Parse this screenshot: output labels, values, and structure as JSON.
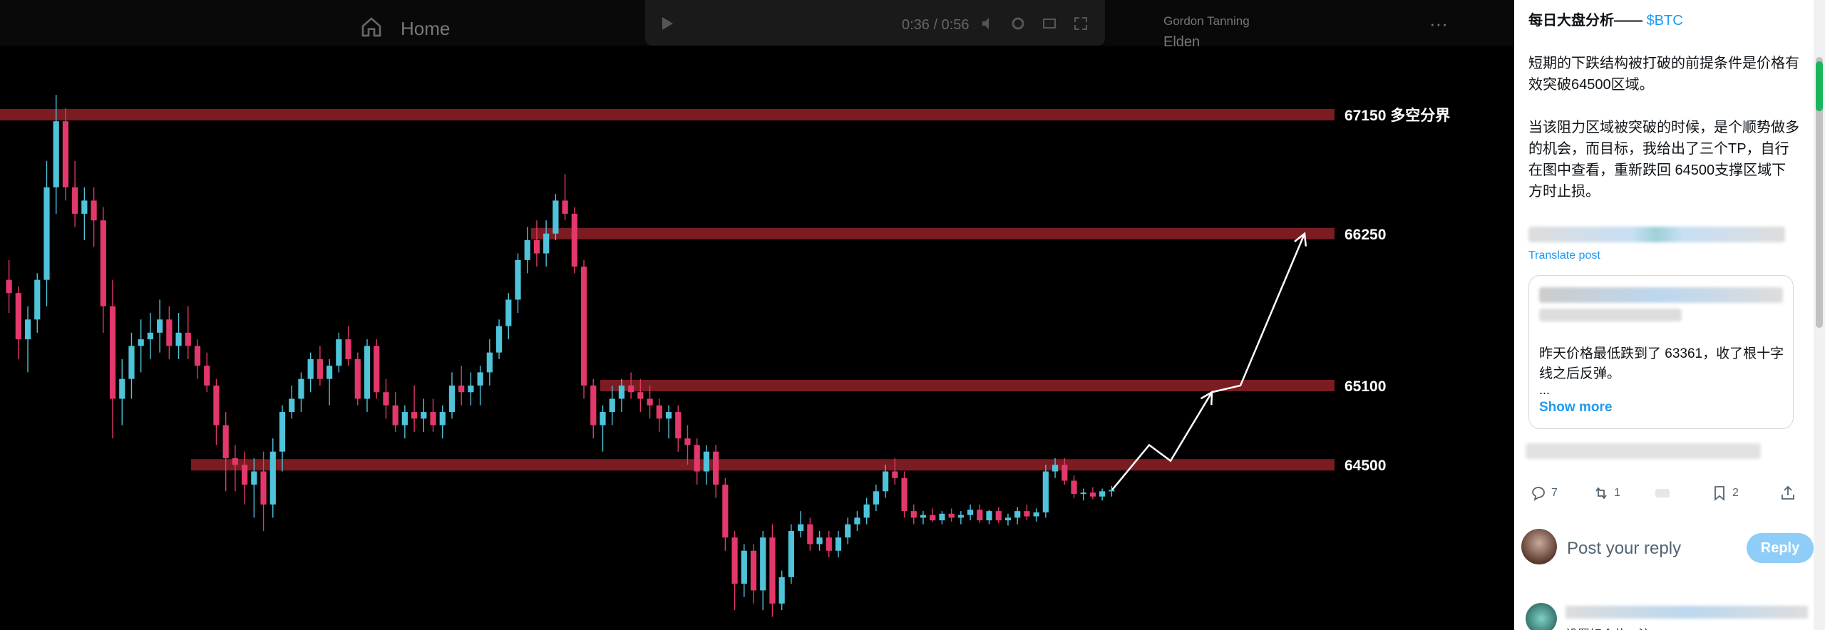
{
  "viewer": {
    "home_label": "Home",
    "video_time": "0:36 / 0:56",
    "author_name": "Gordon Tanning",
    "author_handle": "Elden",
    "more_label": "···"
  },
  "chart_data": {
    "type": "candlestick",
    "title": "",
    "levels": [
      {
        "price": 67150,
        "label": "67150 多空分界"
      },
      {
        "price": 66250,
        "label": "66250"
      },
      {
        "price": 65100,
        "label": "65100"
      },
      {
        "price": 64500,
        "label": "64500"
      }
    ],
    "ylim": [
      63250,
      67500
    ],
    "colors": {
      "up": "#4fc3d9",
      "down": "#e3386b",
      "level_band": "#7a1c22",
      "arrow": "#ffffff"
    },
    "candles": [
      [
        65900,
        66050,
        65650,
        65800
      ],
      [
        65800,
        65850,
        65300,
        65450
      ],
      [
        65450,
        65700,
        65200,
        65600
      ],
      [
        65600,
        65950,
        65500,
        65900
      ],
      [
        65900,
        66800,
        65700,
        66600
      ],
      [
        66600,
        67300,
        66400,
        67100
      ],
      [
        67100,
        67200,
        66500,
        66600
      ],
      [
        66600,
        66800,
        66300,
        66400
      ],
      [
        66400,
        66600,
        66200,
        66500
      ],
      [
        66500,
        66600,
        66150,
        66350
      ],
      [
        66350,
        66450,
        65500,
        65700
      ],
      [
        65700,
        65900,
        64700,
        65000
      ],
      [
        65000,
        65300,
        64800,
        65150
      ],
      [
        65150,
        65500,
        65000,
        65400
      ],
      [
        65400,
        65600,
        65200,
        65450
      ],
      [
        65450,
        65650,
        65300,
        65500
      ],
      [
        65500,
        65750,
        65350,
        65600
      ],
      [
        65600,
        65700,
        65300,
        65400
      ],
      [
        65400,
        65650,
        65300,
        65500
      ],
      [
        65500,
        65700,
        65300,
        65400
      ],
      [
        65400,
        65450,
        65150,
        65250
      ],
      [
        65250,
        65350,
        65050,
        65100
      ],
      [
        65100,
        65150,
        64650,
        64800
      ],
      [
        64800,
        64900,
        64300,
        64550
      ],
      [
        64550,
        64650,
        64300,
        64500
      ],
      [
        64500,
        64600,
        64200,
        64350
      ],
      [
        64350,
        64550,
        64100,
        64450
      ],
      [
        64450,
        64600,
        64000,
        64200
      ],
      [
        64200,
        64700,
        64100,
        64600
      ],
      [
        64600,
        64950,
        64450,
        64900
      ],
      [
        64900,
        65100,
        64850,
        65000
      ],
      [
        65000,
        65200,
        64900,
        65150
      ],
      [
        65150,
        65350,
        65050,
        65300
      ],
      [
        65300,
        65400,
        65100,
        65150
      ],
      [
        65150,
        65300,
        64950,
        65250
      ],
      [
        65250,
        65500,
        65200,
        65450
      ],
      [
        65450,
        65550,
        65250,
        65300
      ],
      [
        65300,
        65350,
        64950,
        65000
      ],
      [
        65000,
        65450,
        64900,
        65400
      ],
      [
        65400,
        65450,
        65000,
        65050
      ],
      [
        65050,
        65150,
        64850,
        64950
      ],
      [
        64950,
        65050,
        64750,
        64800
      ],
      [
        64800,
        64950,
        64700,
        64900
      ],
      [
        64900,
        65100,
        64750,
        64850
      ],
      [
        64850,
        65000,
        64750,
        64900
      ],
      [
        64900,
        65000,
        64750,
        64800
      ],
      [
        64800,
        64950,
        64700,
        64900
      ],
      [
        64900,
        65200,
        64850,
        65100
      ],
      [
        65100,
        65250,
        64950,
        65050
      ],
      [
        65050,
        65200,
        64950,
        65100
      ],
      [
        65100,
        65250,
        64950,
        65200
      ],
      [
        65200,
        65450,
        65100,
        65350
      ],
      [
        65350,
        65600,
        65300,
        65550
      ],
      [
        65550,
        65800,
        65450,
        65750
      ],
      [
        65750,
        66100,
        65650,
        66050
      ],
      [
        66050,
        66300,
        65950,
        66200
      ],
      [
        66200,
        66350,
        66000,
        66100
      ],
      [
        66100,
        66350,
        66000,
        66250
      ],
      [
        66250,
        66550,
        66200,
        66500
      ],
      [
        66500,
        66700,
        66350,
        66400
      ],
      [
        66400,
        66450,
        65950,
        66000
      ],
      [
        66000,
        66050,
        65000,
        65100
      ],
      [
        65100,
        65150,
        64700,
        64800
      ],
      [
        64800,
        64950,
        64600,
        64900
      ],
      [
        64900,
        65100,
        64800,
        65000
      ],
      [
        65000,
        65150,
        64900,
        65100
      ],
      [
        65100,
        65200,
        65000,
        65050
      ],
      [
        65050,
        65150,
        64900,
        65000
      ],
      [
        65000,
        65100,
        64850,
        64950
      ],
      [
        64950,
        65000,
        64750,
        64850
      ],
      [
        64850,
        64950,
        64700,
        64900
      ],
      [
        64900,
        64950,
        64600,
        64700
      ],
      [
        64700,
        64800,
        64500,
        64650
      ],
      [
        64650,
        64700,
        64350,
        64450
      ],
      [
        64450,
        64650,
        64350,
        64600
      ],
      [
        64600,
        64650,
        64250,
        64350
      ],
      [
        64350,
        64400,
        63850,
        63950
      ],
      [
        63950,
        64000,
        63400,
        63600
      ],
      [
        63600,
        63900,
        63500,
        63850
      ],
      [
        63850,
        63900,
        63450,
        63550
      ],
      [
        63550,
        64000,
        63400,
        63950
      ],
      [
        63950,
        64050,
        63350,
        63450
      ],
      [
        63450,
        63700,
        63400,
        63650
      ],
      [
        63650,
        64050,
        63600,
        64000
      ],
      [
        64000,
        64150,
        63950,
        64050
      ],
      [
        64050,
        64100,
        63850,
        63900
      ],
      [
        63900,
        64000,
        63850,
        63950
      ],
      [
        63950,
        64000,
        63800,
        63850
      ],
      [
        63850,
        64000,
        63800,
        63950
      ],
      [
        63950,
        64100,
        63900,
        64050
      ],
      [
        64050,
        64150,
        64000,
        64100
      ],
      [
        64100,
        64250,
        64050,
        64200
      ],
      [
        64200,
        64350,
        64150,
        64300
      ],
      [
        64300,
        64500,
        64250,
        64450
      ],
      [
        64450,
        64550,
        64350,
        64400
      ],
      [
        64400,
        64450,
        64100,
        64150
      ],
      [
        64150,
        64200,
        64050,
        64100
      ],
      [
        64100,
        64150,
        64050,
        64120
      ],
      [
        64120,
        64170,
        64070,
        64080
      ],
      [
        64080,
        64150,
        64050,
        64130
      ],
      [
        64130,
        64170,
        64070,
        64100
      ],
      [
        64100,
        64150,
        64050,
        64120
      ],
      [
        64120,
        64200,
        64080,
        64160
      ],
      [
        64160,
        64200,
        64060,
        64080
      ],
      [
        64080,
        64160,
        64050,
        64150
      ],
      [
        64150,
        64180,
        64060,
        64080
      ],
      [
        64080,
        64130,
        64040,
        64100
      ],
      [
        64100,
        64180,
        64050,
        64150
      ],
      [
        64150,
        64200,
        64080,
        64110
      ],
      [
        64110,
        64170,
        64070,
        64140
      ],
      [
        64140,
        64500,
        64100,
        64450
      ],
      [
        64450,
        64550,
        64400,
        64500
      ],
      [
        64500,
        64550,
        64350,
        64380
      ],
      [
        64380,
        64420,
        64250,
        64280
      ],
      [
        64280,
        64320,
        64230,
        64290
      ],
      [
        64290,
        64330,
        64240,
        64260
      ],
      [
        64260,
        64320,
        64230,
        64300
      ],
      [
        64300,
        64340,
        64260,
        64310
      ]
    ],
    "projection": [
      [
        64310,
        1560
      ],
      [
        64650,
        1612
      ],
      [
        64530,
        1642
      ],
      [
        65050,
        1700
      ],
      [
        65100,
        1740
      ],
      [
        66250,
        1830
      ]
    ],
    "xlabel": "",
    "ylabel": ""
  },
  "sidebar": {
    "post_title": "每日大盘分析——",
    "post_ticker": "$BTC",
    "para1": "短期的下跌结构被打破的前提条件是价格有效突破64500区域。",
    "para2": "当该阻力区域被突破的时候，是个顺势做多的机会，而目标，我给出了三个TP，自行在图中查看，重新跌回 64500支撑区域下方时止损。",
    "translate_label": "Translate post",
    "quote_text": "昨天价格最低跌到了 63361，收了根十字线之后反弹。",
    "quote_ellipsis": "...",
    "show_more": "Show more",
    "actions": {
      "replies": "7",
      "reposts": "1",
      "likes": "",
      "bookmarks": "2"
    },
    "reply_placeholder": "Post your reply",
    "reply_button": "Reply",
    "next_reply_text": "设置好仓位，注"
  }
}
